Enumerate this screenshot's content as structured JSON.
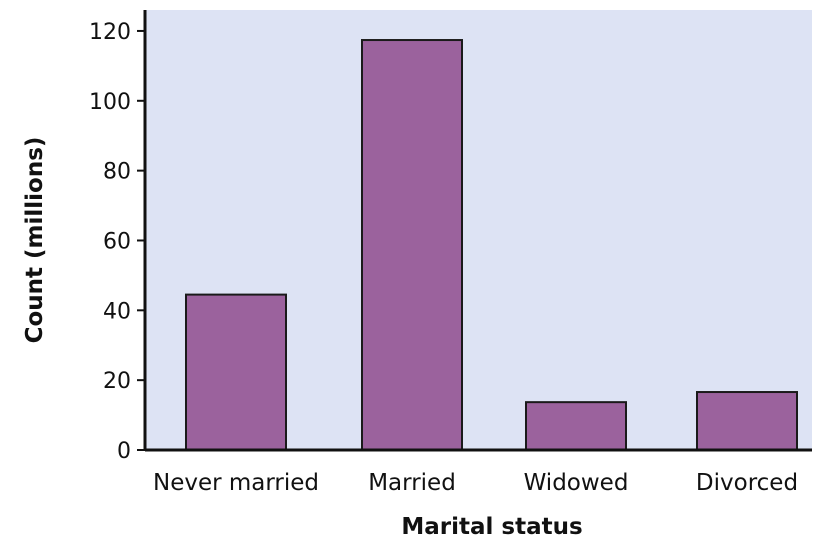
{
  "colors": {
    "plot_background": "#dde3f4",
    "bar_fill": "#9b629d",
    "bar_stroke": "#1a1a1a",
    "axis": "#111111"
  },
  "chart_data": {
    "type": "bar",
    "title": "",
    "xlabel": "Marital status",
    "ylabel": "Count (millions)",
    "categories": [
      "Never married",
      "Married",
      "Widowed",
      "Divorced"
    ],
    "values": [
      44.5,
      117.4,
      13.7,
      16.6
    ],
    "ylim": [
      0,
      126
    ],
    "yticks": [
      0,
      20,
      40,
      60,
      80,
      100,
      120
    ],
    "grid": false,
    "legend": "none"
  }
}
